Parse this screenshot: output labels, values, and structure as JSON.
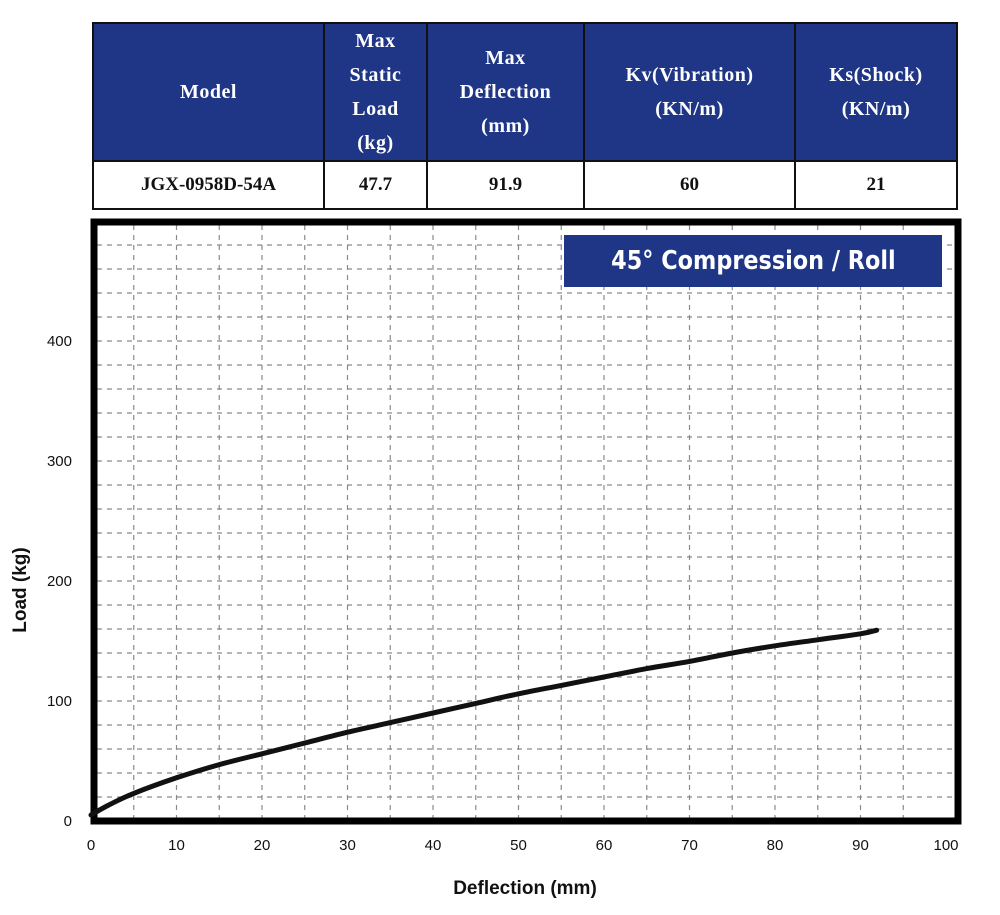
{
  "spec_table": {
    "headers": [
      "Model",
      "Max\nStatic\nLoad\n(kg)",
      "Max\nDeflection\n(mm)",
      "Kv(Vibration)\n(KN/m)",
      "Ks(Shock)\n(KN/m)"
    ],
    "row": [
      "JGX-0958D-54A",
      "47.7",
      "91.9",
      "60",
      "21"
    ]
  },
  "chart_data": {
    "type": "line",
    "title": "45° Compression / Roll",
    "xlabel": "Deflection (mm)",
    "ylabel": "Load (kg)",
    "xlim": [
      0,
      100
    ],
    "ylim": [
      0,
      500
    ],
    "x_ticks": [
      0,
      10,
      20,
      30,
      40,
      50,
      60,
      70,
      80,
      90,
      100
    ],
    "y_ticks": [
      0,
      100,
      200,
      300,
      400
    ],
    "grid": true,
    "series": [
      {
        "x": [
          0,
          2,
          5,
          10,
          15,
          20,
          25,
          30,
          35,
          40,
          45,
          50,
          55,
          60,
          65,
          70,
          75,
          80,
          85,
          90,
          91.9
        ],
        "values": [
          5,
          13,
          23,
          36,
          47,
          56,
          65,
          74,
          82,
          90,
          98,
          106,
          113,
          120,
          127,
          133,
          140,
          146,
          151,
          156,
          159
        ]
      }
    ],
    "colors": {
      "line": "#111111",
      "title_bg": "#1f3586",
      "grid": "#8a8a8a"
    }
  }
}
